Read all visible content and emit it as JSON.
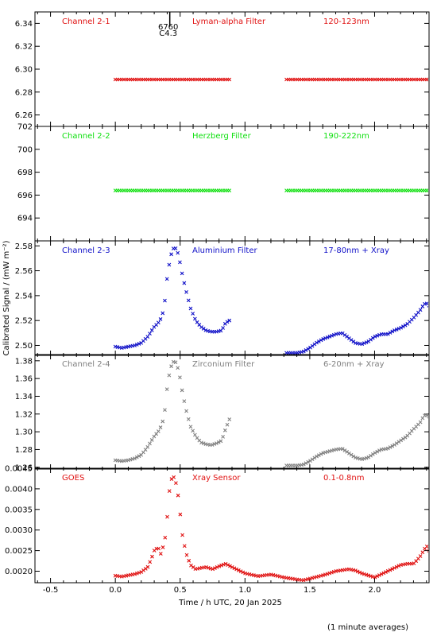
{
  "footer_note": "(1 minute averages)",
  "chart_data": {
    "type": "scatter",
    "xlabel": "Time / h UTC, 20 Jan 2025",
    "ylabel": "Calibrated Signal / (mW m⁻²)",
    "xlim": [
      -0.62,
      2.42
    ],
    "xticks": [
      -0.5,
      0.0,
      0.5,
      1.0,
      1.5,
      2.0
    ],
    "xtick_labels": [
      "-0.5",
      "0.0",
      "0.5",
      "1.0",
      "1.5",
      "2.0"
    ],
    "grid": false,
    "marker_annotation": {
      "x": 0.42,
      "lines": [
        "6760",
        "C4.3"
      ]
    },
    "panels": [
      {
        "channel": "Channel 2-1",
        "filter": "Lyman-alpha Filter",
        "band": "120-123nm",
        "color": "#e01010",
        "ylim": [
          6.25,
          6.35
        ],
        "yticks": [
          6.26,
          6.28,
          6.3,
          6.32,
          6.34
        ],
        "ytick_labels": [
          "6.26",
          "6.28",
          "6.30",
          "6.32",
          "6.34"
        ],
        "segments": [
          {
            "x": [
              0.0,
              0.88
            ],
            "y": [
              6.291,
              6.291
            ]
          },
          {
            "x": [
              1.32,
              2.42
            ],
            "y": [
              6.291,
              6.291
            ]
          }
        ]
      },
      {
        "channel": "Channel 2-2",
        "filter": "Herzberg Filter",
        "band": "190-222nm",
        "color": "#10e010",
        "ylim": [
          692.0,
          702.0
        ],
        "yticks": [
          694,
          696,
          698,
          700,
          702
        ],
        "ytick_labels": [
          "694",
          "696",
          "698",
          "700",
          "702"
        ],
        "segments": [
          {
            "x": [
              0.0,
              0.88
            ],
            "y": [
              696.4,
              696.4
            ]
          },
          {
            "x": [
              1.32,
              2.42
            ],
            "y": [
              696.4,
              696.4
            ]
          }
        ]
      },
      {
        "channel": "Channel 2-3",
        "filter": "Aluminium Filter",
        "band": "17-80nm + Xray",
        "color": "#1010c8",
        "ylim": [
          2.492,
          2.584
        ],
        "yticks": [
          2.5,
          2.52,
          2.54,
          2.56,
          2.58
        ],
        "ytick_labels": [
          "2.50",
          "2.52",
          "2.54",
          "2.56",
          "2.58"
        ],
        "segments": [
          {
            "x": [
              0.0,
              0.05,
              0.1,
              0.15,
              0.2,
              0.25,
              0.3,
              0.33,
              0.36,
              0.38,
              0.4,
              0.42,
              0.44,
              0.46,
              0.48,
              0.5,
              0.52,
              0.55,
              0.58,
              0.62,
              0.66,
              0.7,
              0.74,
              0.78,
              0.82,
              0.85,
              0.88
            ],
            "y": [
              2.499,
              2.498,
              2.499,
              2.5,
              2.502,
              2.507,
              2.515,
              2.518,
              2.523,
              2.534,
              2.555,
              2.568,
              2.577,
              2.579,
              2.575,
              2.566,
              2.555,
              2.542,
              2.53,
              2.52,
              2.515,
              2.512,
              2.511,
              2.511,
              2.512,
              2.518,
              2.52
            ]
          },
          {
            "x": [
              1.32,
              1.4,
              1.45,
              1.5,
              1.55,
              1.6,
              1.65,
              1.7,
              1.75,
              1.8,
              1.85,
              1.9,
              1.95,
              2.0,
              2.05,
              2.1,
              2.15,
              2.2,
              2.25,
              2.3,
              2.35,
              2.38,
              2.4,
              2.42
            ],
            "y": [
              2.494,
              2.494,
              2.495,
              2.498,
              2.502,
              2.505,
              2.507,
              2.509,
              2.51,
              2.506,
              2.502,
              2.501,
              2.503,
              2.507,
              2.509,
              2.509,
              2.512,
              2.514,
              2.517,
              2.522,
              2.528,
              2.533,
              2.534,
              2.532
            ]
          }
        ]
      },
      {
        "channel": "Channel 2-4",
        "filter": "Zirconium Filter",
        "band": "6-20nm + Xray",
        "color": "#808080",
        "ylim": [
          1.258,
          1.387
        ],
        "yticks": [
          1.26,
          1.28,
          1.3,
          1.32,
          1.34,
          1.36,
          1.38
        ],
        "ytick_labels": [
          "1.26",
          "1.28",
          "1.30",
          "1.32",
          "1.34",
          "1.36",
          "1.38"
        ],
        "segments": [
          {
            "x": [
              0.0,
              0.05,
              0.1,
              0.15,
              0.2,
              0.25,
              0.3,
              0.33,
              0.36,
              0.38,
              0.4,
              0.42,
              0.44,
              0.46,
              0.48,
              0.5,
              0.52,
              0.55,
              0.58,
              0.62,
              0.66,
              0.7,
              0.74,
              0.78,
              0.82,
              0.85,
              0.88
            ],
            "y": [
              1.268,
              1.267,
              1.268,
              1.27,
              1.274,
              1.283,
              1.295,
              1.3,
              1.308,
              1.322,
              1.35,
              1.368,
              1.378,
              1.38,
              1.373,
              1.36,
              1.342,
              1.322,
              1.306,
              1.295,
              1.288,
              1.286,
              1.285,
              1.287,
              1.29,
              1.303,
              1.314
            ]
          },
          {
            "x": [
              1.32,
              1.4,
              1.45,
              1.5,
              1.55,
              1.6,
              1.65,
              1.7,
              1.75,
              1.8,
              1.85,
              1.9,
              1.95,
              2.0,
              2.05,
              2.1,
              2.15,
              2.2,
              2.25,
              2.3,
              2.35,
              2.38,
              2.4,
              2.42
            ],
            "y": [
              1.262,
              1.262,
              1.263,
              1.267,
              1.272,
              1.276,
              1.278,
              1.28,
              1.281,
              1.276,
              1.271,
              1.269,
              1.271,
              1.276,
              1.28,
              1.281,
              1.285,
              1.29,
              1.295,
              1.303,
              1.31,
              1.318,
              1.319,
              1.317
            ]
          }
        ]
      },
      {
        "channel": "GOES",
        "filter": "Xray Sensor",
        "band": "0.1-0.8nm",
        "color": "#e01010",
        "ylim": [
          0.00172,
          0.0045
        ],
        "yticks": [
          0.002,
          0.0025,
          0.003,
          0.0035,
          0.004,
          0.0045
        ],
        "ytick_labels": [
          "0.0020",
          "0.0025",
          "0.0030",
          "0.0035",
          "0.0040",
          "0.0045"
        ],
        "segments": [
          {
            "x": [
              0.0,
              0.05,
              0.1,
              0.15,
              0.2,
              0.25,
              0.28,
              0.3,
              0.33,
              0.35,
              0.38,
              0.4,
              0.42,
              0.44,
              0.46,
              0.48,
              0.5,
              0.52,
              0.55,
              0.58,
              0.62,
              0.66,
              0.7,
              0.75,
              0.8,
              0.85,
              0.9,
              1.0,
              1.1,
              1.2,
              1.3,
              1.4,
              1.45,
              1.5,
              1.6,
              1.7,
              1.8,
              1.85,
              1.9,
              2.0,
              2.1,
              2.2,
              2.25,
              2.3,
              2.35,
              2.4,
              2.42
            ],
            "y": [
              0.00189,
              0.00187,
              0.0019,
              0.00193,
              0.00198,
              0.0021,
              0.00232,
              0.0025,
              0.00258,
              0.00242,
              0.0027,
              0.0033,
              0.00405,
              0.00432,
              0.00425,
              0.00395,
              0.0034,
              0.0028,
              0.0024,
              0.00215,
              0.00205,
              0.00208,
              0.0021,
              0.00205,
              0.00212,
              0.00218,
              0.0021,
              0.00195,
              0.00188,
              0.00192,
              0.00185,
              0.0018,
              0.00178,
              0.00182,
              0.0019,
              0.002,
              0.00205,
              0.00202,
              0.00195,
              0.00185,
              0.002,
              0.00215,
              0.00218,
              0.00218,
              0.00235,
              0.00262,
              0.0025
            ]
          }
        ]
      }
    ]
  }
}
